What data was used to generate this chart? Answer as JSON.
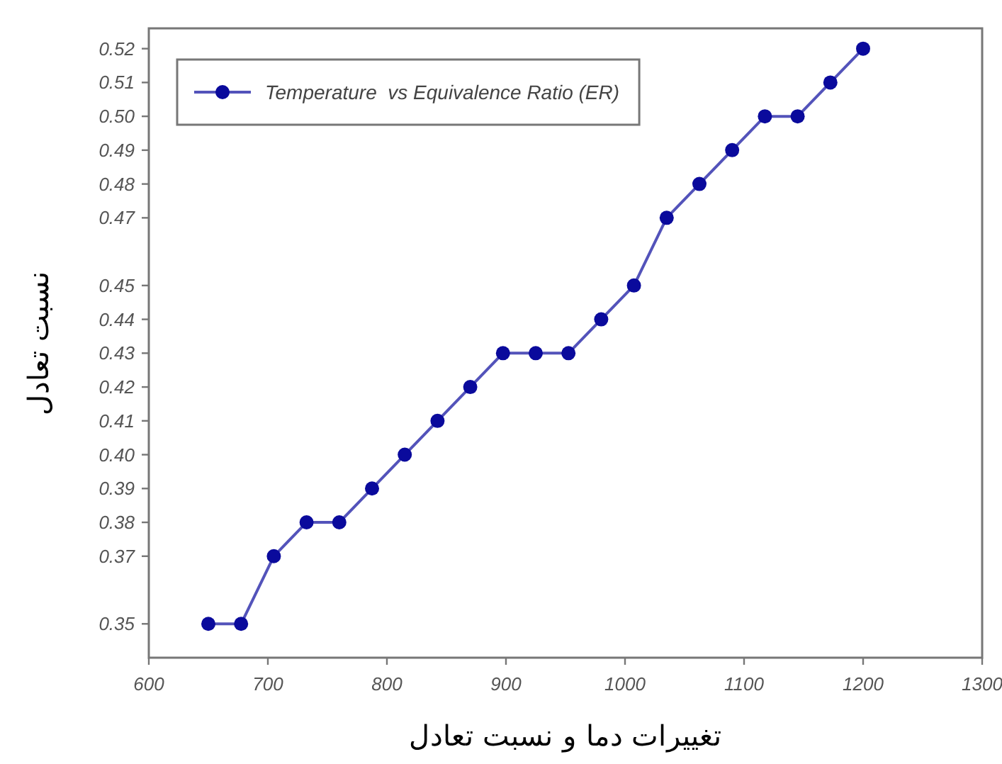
{
  "chart_data": {
    "type": "line",
    "xlabel": "تغییرات دما و نسبت تعادل",
    "ylabel": "نسبت تعادل",
    "x": [
      650,
      677.5,
      705,
      732.5,
      760,
      787.5,
      815,
      842.5,
      870,
      897.5,
      925,
      952.5,
      980,
      1007.5,
      1035,
      1062.5,
      1090,
      1117.5,
      1145,
      1172.5,
      1200
    ],
    "series": [
      {
        "name": "Temperature  vs Equivalence Ratio (ER)",
        "color": "#0a0a9c",
        "values": [
          0.35,
          0.35,
          0.37,
          0.38,
          0.38,
          0.39,
          0.4,
          0.41,
          0.42,
          0.43,
          0.43,
          0.43,
          0.44,
          0.45,
          0.47,
          0.48,
          0.49,
          0.5,
          0.5,
          0.51,
          0.52
        ]
      }
    ],
    "xlim": [
      600,
      1300
    ],
    "xticks": [
      600,
      700,
      800,
      900,
      1000,
      1100,
      1200,
      1300
    ],
    "ylim": [
      0.34,
      0.526
    ],
    "yticks": [
      {
        "value": 0.35,
        "label": "0.35"
      },
      {
        "value": 0.37,
        "label": "0.37"
      },
      {
        "value": 0.38,
        "label": "0.38"
      },
      {
        "value": 0.39,
        "label": "0.39"
      },
      {
        "value": 0.4,
        "label": "0.40"
      },
      {
        "value": 0.41,
        "label": "0.41"
      },
      {
        "value": 0.42,
        "label": "0.42"
      },
      {
        "value": 0.43,
        "label": "0.43"
      },
      {
        "value": 0.44,
        "label": "0.44"
      },
      {
        "value": 0.45,
        "label": "0.45"
      },
      {
        "value": 0.47,
        "label": "0.47"
      },
      {
        "value": 0.48,
        "label": "0.48"
      },
      {
        "value": 0.49,
        "label": "0.49"
      },
      {
        "value": 0.5,
        "label": "0.50"
      },
      {
        "value": 0.51,
        "label": "0.51"
      },
      {
        "value": 0.52,
        "label": "0.52"
      }
    ],
    "legend": "top left",
    "marker": "circle",
    "line_style": "solid",
    "grid": false
  }
}
